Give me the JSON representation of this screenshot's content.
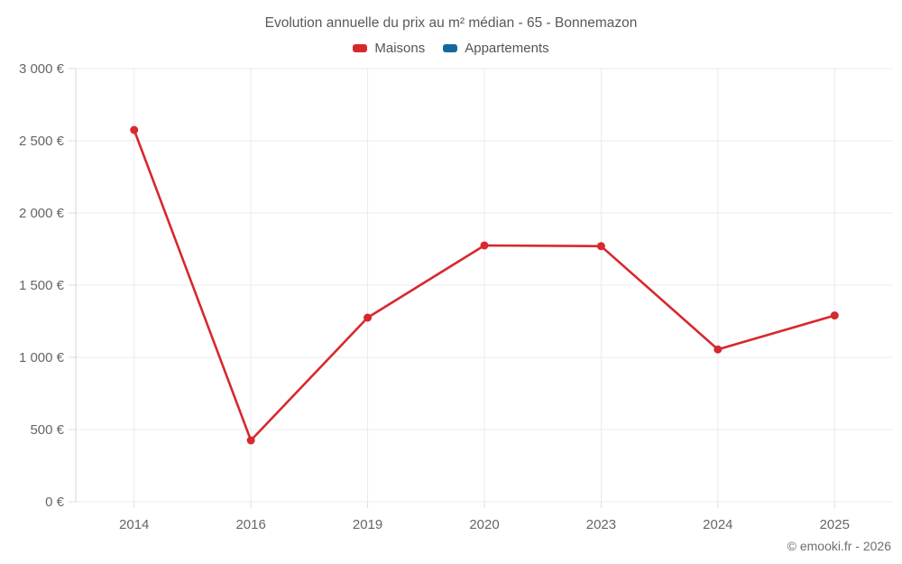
{
  "chart": {
    "title": "Evolution annuelle du prix au m² médian - 65 - Bonnemazon",
    "legend": [
      {
        "label": "Maisons",
        "color": "#d7282e"
      },
      {
        "label": "Appartements",
        "color": "#14699c"
      }
    ]
  },
  "chart_data": {
    "type": "line",
    "title": "Evolution annuelle du prix au m² médian - 65 - Bonnemazon",
    "categories": [
      "2014",
      "2016",
      "2019",
      "2020",
      "2023",
      "2024",
      "2025"
    ],
    "series": [
      {
        "name": "Maisons",
        "color": "#d7282e",
        "values": [
          2575,
          425,
          1275,
          1775,
          1770,
          1055,
          1290
        ]
      },
      {
        "name": "Appartements",
        "color": "#14699c",
        "values": []
      }
    ],
    "xlabel": "",
    "ylabel": "",
    "ylim": [
      0,
      3000
    ],
    "y_ticks": [
      {
        "value": 0,
        "label": "0 €"
      },
      {
        "value": 500,
        "label": "500 €"
      },
      {
        "value": 1000,
        "label": "1 000 €"
      },
      {
        "value": 1500,
        "label": "1 500 €"
      },
      {
        "value": 2000,
        "label": "2 000 €"
      },
      {
        "value": 2500,
        "label": "2 500 €"
      },
      {
        "value": 3000,
        "label": "3 000 €"
      }
    ],
    "grid": true,
    "legend_position": "top",
    "colors": {
      "gridline": "#ebebeb",
      "tick": "#dcdcdc",
      "axis_line": "#d4d4d4",
      "tick_label": "#666666"
    }
  },
  "footer": {
    "copyright": "© emooki.fr - 2026"
  }
}
